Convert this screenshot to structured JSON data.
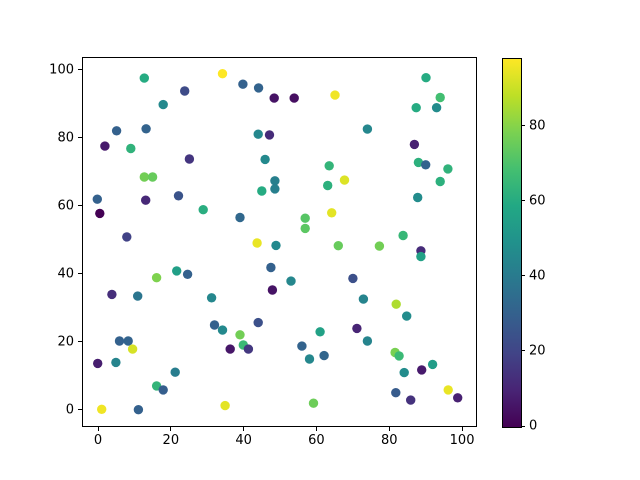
{
  "figure": {
    "background": "#ffffff",
    "text_color": "#000000",
    "spine_color": "#000000"
  },
  "chart_data": {
    "type": "scatter",
    "title": "",
    "xlabel": "",
    "ylabel": "",
    "grid": false,
    "legend": "none",
    "x_tick_labels": [
      "0",
      "20",
      "40",
      "60",
      "80",
      "100"
    ],
    "x_tick_values": [
      0,
      20,
      40,
      60,
      80,
      100
    ],
    "y_tick_labels": [
      "0",
      "20",
      "40",
      "60",
      "80",
      "100"
    ],
    "y_tick_values": [
      0,
      20,
      40,
      60,
      80,
      100
    ],
    "xlim": [
      -4.4,
      104.1
    ],
    "ylim": [
      -5.0,
      103.8
    ],
    "marker": "circle",
    "marker_radius_px": 4.7,
    "colormap": "viridis",
    "viridis_anchors": [
      "#440154",
      "#482475",
      "#414487",
      "#355f8d",
      "#2a788e",
      "#21918c",
      "#22a884",
      "#44bf70",
      "#7ad151",
      "#bddf26",
      "#fde725"
    ],
    "colorbar": {
      "position": "right",
      "vmin": 0,
      "vmax": 98,
      "tick_labels": [
        "0",
        "20",
        "40",
        "60",
        "80"
      ],
      "tick_values": [
        0,
        20,
        40,
        60,
        80
      ]
    },
    "points": [
      [
        12.7,
        97.6,
        60
      ],
      [
        34.2,
        98.9,
        98
      ],
      [
        39.8,
        95.8,
        30
      ],
      [
        44.1,
        94.7,
        31
      ],
      [
        48.4,
        91.7,
        5
      ],
      [
        53.9,
        91.7,
        4
      ],
      [
        23.8,
        93.8,
        22
      ],
      [
        17.9,
        89.8,
        46
      ],
      [
        65.1,
        92.6,
        96
      ],
      [
        90.1,
        97.7,
        60
      ],
      [
        94.0,
        91.9,
        68
      ],
      [
        87.4,
        88.9,
        60
      ],
      [
        93.0,
        88.9,
        47
      ],
      [
        5.1,
        82.1,
        30
      ],
      [
        1.9,
        77.6,
        7
      ],
      [
        9.0,
        76.9,
        63
      ],
      [
        25.1,
        73.8,
        15
      ],
      [
        74.0,
        82.6,
        45
      ],
      [
        13.2,
        82.7,
        31
      ],
      [
        44.0,
        81.1,
        45
      ],
      [
        47.1,
        80.9,
        12
      ],
      [
        45.9,
        73.7,
        46
      ],
      [
        12.7,
        68.5,
        77
      ],
      [
        15.0,
        68.5,
        75
      ],
      [
        22.1,
        63.0,
        25
      ],
      [
        13.1,
        61.7,
        11
      ],
      [
        -0.2,
        62.0,
        30
      ],
      [
        0.5,
        57.8,
        0
      ],
      [
        28.9,
        58.9,
        61
      ],
      [
        39.0,
        56.6,
        33
      ],
      [
        7.9,
        50.9,
        19
      ],
      [
        63.5,
        71.8,
        64
      ],
      [
        63.1,
        66.0,
        62
      ],
      [
        67.7,
        67.6,
        93
      ],
      [
        48.6,
        67.4,
        42
      ],
      [
        48.6,
        65.0,
        42
      ],
      [
        45.0,
        64.4,
        60
      ],
      [
        64.2,
        58.0,
        94
      ],
      [
        56.9,
        56.4,
        72
      ],
      [
        56.9,
        53.4,
        73
      ],
      [
        86.9,
        78.1,
        9
      ],
      [
        88.0,
        72.8,
        62
      ],
      [
        90.0,
        72.1,
        31
      ],
      [
        96.1,
        70.9,
        63
      ],
      [
        94.0,
        67.2,
        62
      ],
      [
        87.8,
        62.5,
        47
      ],
      [
        83.8,
        51.3,
        65
      ],
      [
        88.7,
        46.8,
        12
      ],
      [
        88.7,
        45.1,
        56
      ],
      [
        43.7,
        49.1,
        95
      ],
      [
        48.9,
        48.4,
        46
      ],
      [
        66.0,
        48.3,
        75
      ],
      [
        77.3,
        48.2,
        77
      ],
      [
        16.1,
        38.9,
        79
      ],
      [
        21.6,
        40.9,
        55
      ],
      [
        24.6,
        39.9,
        30
      ],
      [
        47.5,
        41.9,
        30
      ],
      [
        3.8,
        34.0,
        13
      ],
      [
        10.9,
        33.5,
        38
      ],
      [
        31.2,
        33.0,
        45
      ],
      [
        47.9,
        35.3,
        5
      ],
      [
        53.0,
        37.9,
        45
      ],
      [
        70.0,
        38.7,
        24
      ],
      [
        72.9,
        32.6,
        44
      ],
      [
        81.9,
        31.1,
        86
      ],
      [
        84.8,
        27.6,
        47
      ],
      [
        71.1,
        24.0,
        10
      ],
      [
        61.0,
        23.0,
        56
      ],
      [
        74.0,
        20.3,
        44
      ],
      [
        32.0,
        25.0,
        30
      ],
      [
        34.2,
        23.5,
        46
      ],
      [
        39.0,
        22.1,
        77
      ],
      [
        44.0,
        25.7,
        24
      ],
      [
        36.3,
        17.9,
        6
      ],
      [
        39.9,
        19.1,
        66
      ],
      [
        41.3,
        17.9,
        16
      ],
      [
        56.0,
        18.8,
        31
      ],
      [
        58.1,
        15.0,
        45
      ],
      [
        62.1,
        16.0,
        32
      ],
      [
        5.9,
        20.3,
        30
      ],
      [
        8.3,
        20.3,
        31
      ],
      [
        9.5,
        17.9,
        92
      ],
      [
        -0.1,
        13.7,
        8
      ],
      [
        4.9,
        14.0,
        44
      ],
      [
        21.2,
        11.1,
        41
      ],
      [
        16.1,
        7.1,
        64
      ],
      [
        17.9,
        5.9,
        29
      ],
      [
        1.0,
        0.2,
        96
      ],
      [
        11.1,
        0.1,
        30
      ],
      [
        34.9,
        1.3,
        94
      ],
      [
        59.2,
        2.0,
        76
      ],
      [
        81.6,
        16.9,
        78
      ],
      [
        82.7,
        15.9,
        66
      ],
      [
        84.1,
        11.0,
        47
      ],
      [
        88.9,
        11.8,
        7
      ],
      [
        91.9,
        13.4,
        54
      ],
      [
        81.8,
        5.1,
        28
      ],
      [
        85.9,
        2.9,
        14
      ],
      [
        96.2,
        5.9,
        95
      ],
      [
        98.8,
        3.6,
        9
      ]
    ]
  }
}
